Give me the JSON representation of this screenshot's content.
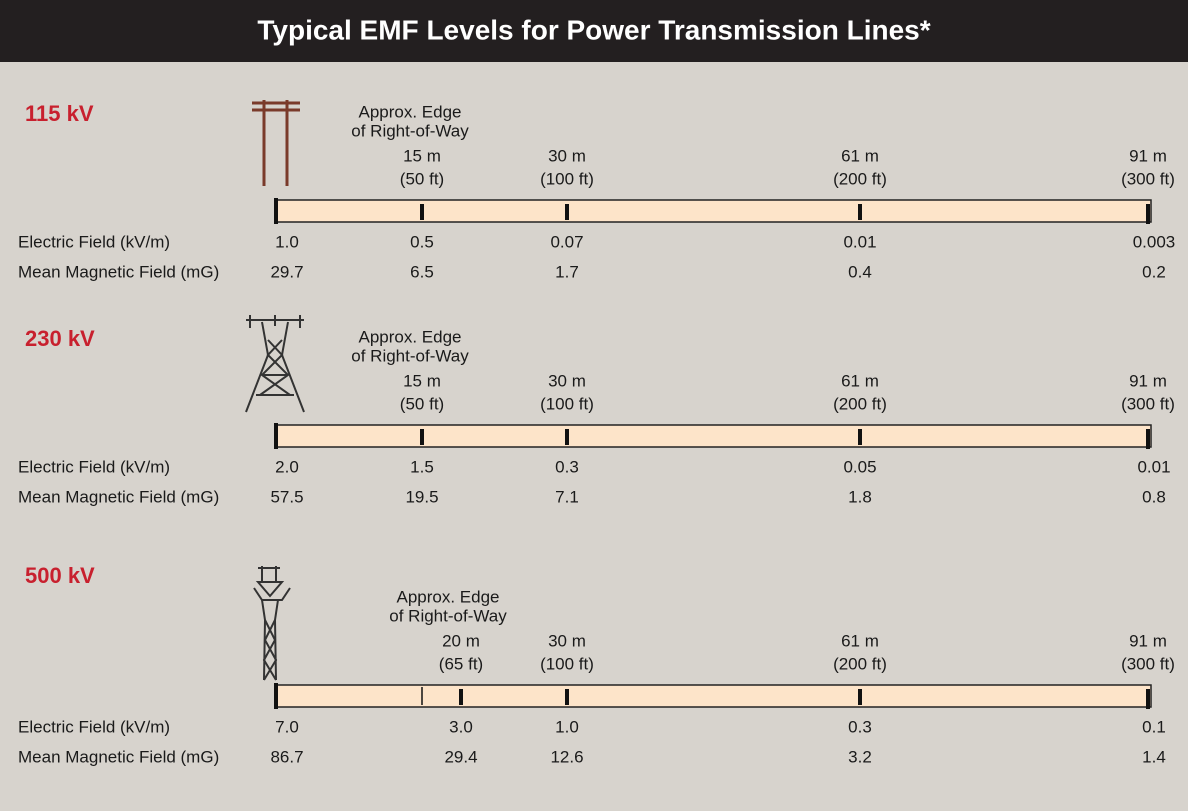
{
  "header": {
    "title": "Typical EMF Levels for Power Transmission Lines*"
  },
  "sections": [
    {
      "voltage": "115 kV",
      "edge_label": [
        "Approx. Edge",
        "of Right-of-Way"
      ],
      "markers": [
        {
          "distance": "15 m",
          "imperial": "(50 ft)"
        },
        {
          "distance": "30 m",
          "imperial": "(100 ft)"
        },
        {
          "distance": "61 m",
          "imperial": "(200 ft)"
        },
        {
          "distance": "91 m",
          "imperial": "(300 ft)"
        }
      ],
      "rows": [
        {
          "label": "Electric Field (kV/m)",
          "values": [
            "1.0",
            "0.5",
            "0.07",
            "0.01",
            "0.003"
          ]
        },
        {
          "label": "Mean Magnetic Field (mG)",
          "values": [
            "29.7",
            "6.5",
            "1.7",
            "0.4",
            "0.2"
          ]
        }
      ]
    },
    {
      "voltage": "230 kV",
      "edge_label": [
        "Approx. Edge",
        "of Right-of-Way"
      ],
      "markers": [
        {
          "distance": "15 m",
          "imperial": "(50 ft)"
        },
        {
          "distance": "30 m",
          "imperial": "(100 ft)"
        },
        {
          "distance": "61 m",
          "imperial": "(200 ft)"
        },
        {
          "distance": "91 m",
          "imperial": "(300 ft)"
        }
      ],
      "rows": [
        {
          "label": "Electric Field (kV/m)",
          "values": [
            "2.0",
            "1.5",
            "0.3",
            "0.05",
            "0.01"
          ]
        },
        {
          "label": "Mean Magnetic Field (mG)",
          "values": [
            "57.5",
            "19.5",
            "7.1",
            "1.8",
            "0.8"
          ]
        }
      ]
    },
    {
      "voltage": "500 kV",
      "edge_label": [
        "Approx. Edge",
        "of Right-of-Way"
      ],
      "markers": [
        {
          "distance": "20 m",
          "imperial": "(65 ft)"
        },
        {
          "distance": "30 m",
          "imperial": "(100 ft)"
        },
        {
          "distance": "61 m",
          "imperial": "(200 ft)"
        },
        {
          "distance": "91 m",
          "imperial": "(300 ft)"
        }
      ],
      "rows": [
        {
          "label": "Electric Field (kV/m)",
          "values": [
            "7.0",
            "3.0",
            "1.0",
            "0.3",
            "0.1"
          ]
        },
        {
          "label": "Mean Magnetic Field (mG)",
          "values": [
            "86.7",
            "29.4",
            "12.6",
            "3.2",
            "1.4"
          ]
        }
      ]
    }
  ]
}
